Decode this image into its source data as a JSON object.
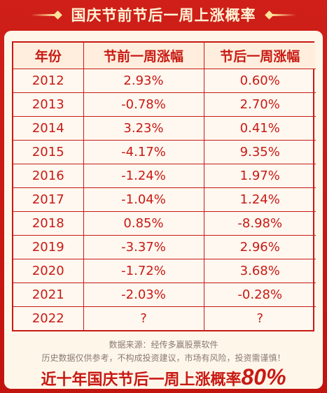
{
  "title": "国庆节前节后一周上涨概率",
  "table": {
    "headers": [
      "年份",
      "节前一周涨幅",
      "节后一周涨幅"
    ],
    "rows": [
      [
        "2012",
        "2.93%",
        "0.60%"
      ],
      [
        "2013",
        "-0.78%",
        "2.70%"
      ],
      [
        "2014",
        "3.23%",
        "0.41%"
      ],
      [
        "2015",
        "-4.17%",
        "9.35%"
      ],
      [
        "2016",
        "-1.24%",
        "1.97%"
      ],
      [
        "2017",
        "-1.04%",
        "1.24%"
      ],
      [
        "2018",
        "0.85%",
        "-8.98%"
      ],
      [
        "2019",
        "-3.37%",
        "2.96%"
      ],
      [
        "2020",
        "-1.72%",
        "3.68%"
      ],
      [
        "2021",
        "-2.03%",
        "-0.28%"
      ],
      [
        "2022",
        "?",
        "?"
      ]
    ]
  },
  "source": "数据来源：经传多赢股票软件",
  "disclaimer": "历史数据仅供参考，不构成投资建议，市场有风险，投资需谨慎！",
  "conclusion": {
    "text": "近十年国庆节后一周上涨概率",
    "percent": "80%"
  },
  "colors": {
    "brand_red": "#c81a14",
    "card_bg": "#fff6ea",
    "title_text": "#fff3d6",
    "accent_gold": "#ffe29a"
  }
}
